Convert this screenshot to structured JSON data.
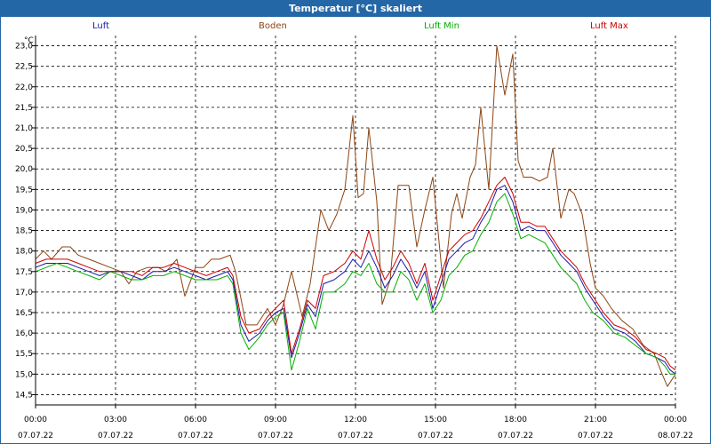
{
  "title": "Temperatur [°C] skaliert",
  "chart_data": {
    "type": "line",
    "title": "Temperatur [°C] skaliert",
    "ylabel": "°C",
    "xlabel": "",
    "ylim": [
      14.25,
      23.25
    ],
    "xlim": [
      0,
      24
    ],
    "grid": true,
    "legend": "top",
    "y_ticks": [
      "14,5",
      "15,0",
      "15,5",
      "16,0",
      "16,5",
      "17,0",
      "17,5",
      "18,0",
      "18,5",
      "19,0",
      "19,5",
      "20,0",
      "20,5",
      "21,0",
      "21,5",
      "22,0",
      "22,5",
      "23,0"
    ],
    "x_ticks": [
      {
        "time": "00:00",
        "date": "07.07.22"
      },
      {
        "time": "03:00",
        "date": "07.07.22"
      },
      {
        "time": "06:00",
        "date": "07.07.22"
      },
      {
        "time": "09:00",
        "date": "07.07.22"
      },
      {
        "time": "12:00",
        "date": "07.07.22"
      },
      {
        "time": "15:00",
        "date": "07.07.22"
      },
      {
        "time": "18:00",
        "date": "07.07.22"
      },
      {
        "time": "21:00",
        "date": "07.07.22"
      },
      {
        "time": "00:00",
        "date": "08.07.22"
      }
    ],
    "series": [
      {
        "name": "Boden",
        "color": "#8b4513",
        "points": [
          [
            0,
            17.8
          ],
          [
            0.3,
            18
          ],
          [
            0.6,
            17.8
          ],
          [
            1,
            18.1
          ],
          [
            1.3,
            18.1
          ],
          [
            1.6,
            17.9
          ],
          [
            2,
            17.8
          ],
          [
            2.4,
            17.7
          ],
          [
            2.8,
            17.6
          ],
          [
            3.2,
            17.5
          ],
          [
            3.5,
            17.2
          ],
          [
            3.8,
            17.5
          ],
          [
            4.2,
            17.6
          ],
          [
            4.6,
            17.6
          ],
          [
            4.9,
            17.5
          ],
          [
            5.3,
            17.8
          ],
          [
            5.6,
            16.9
          ],
          [
            6,
            17.6
          ],
          [
            6.3,
            17.6
          ],
          [
            6.6,
            17.8
          ],
          [
            6.9,
            17.8
          ],
          [
            7.3,
            17.9
          ],
          [
            7.5,
            17.5
          ],
          [
            7.9,
            16.2
          ],
          [
            8.3,
            16.2
          ],
          [
            8.7,
            16.6
          ],
          [
            9,
            16.2
          ],
          [
            9.3,
            16.7
          ],
          [
            9.6,
            17.5
          ],
          [
            10,
            16.4
          ],
          [
            10.3,
            17.2
          ],
          [
            10.7,
            19
          ],
          [
            11,
            18.5
          ],
          [
            11.3,
            18.9
          ],
          [
            11.6,
            19.5
          ],
          [
            11.9,
            21.3
          ],
          [
            12.1,
            19.3
          ],
          [
            12.3,
            19.4
          ],
          [
            12.5,
            21
          ],
          [
            12.8,
            19.2
          ],
          [
            13,
            16.7
          ],
          [
            13.3,
            17.3
          ],
          [
            13.6,
            19.6
          ],
          [
            14,
            19.6
          ],
          [
            14.3,
            18.1
          ],
          [
            14.6,
            19
          ],
          [
            14.9,
            19.8
          ],
          [
            15.3,
            17.1
          ],
          [
            15.6,
            18.9
          ],
          [
            15.8,
            19.4
          ],
          [
            16,
            18.8
          ],
          [
            16.3,
            19.8
          ],
          [
            16.5,
            20.1
          ],
          [
            16.7,
            21.5
          ],
          [
            17,
            19.5
          ],
          [
            17.3,
            23
          ],
          [
            17.6,
            21.8
          ],
          [
            17.9,
            22.8
          ],
          [
            18.1,
            20.2
          ],
          [
            18.3,
            19.8
          ],
          [
            18.6,
            19.8
          ],
          [
            18.9,
            19.7
          ],
          [
            19.2,
            19.8
          ],
          [
            19.4,
            20.5
          ],
          [
            19.7,
            18.8
          ],
          [
            20,
            19.5
          ],
          [
            20.2,
            19.4
          ],
          [
            20.5,
            18.9
          ],
          [
            20.8,
            17.7
          ],
          [
            21,
            17.1
          ],
          [
            21.3,
            16.9
          ],
          [
            21.6,
            16.6
          ],
          [
            22,
            16.3
          ],
          [
            22.4,
            16.1
          ],
          [
            22.8,
            15.7
          ],
          [
            23.2,
            15.5
          ],
          [
            23.5,
            15
          ],
          [
            23.7,
            14.7
          ],
          [
            24,
            15
          ]
        ]
      },
      {
        "name": "Luft",
        "color": "#1a1aa6",
        "points": [
          [
            0,
            17.6
          ],
          [
            0.4,
            17.7
          ],
          [
            0.8,
            17.7
          ],
          [
            1.2,
            17.7
          ],
          [
            1.6,
            17.6
          ],
          [
            2,
            17.5
          ],
          [
            2.4,
            17.4
          ],
          [
            2.8,
            17.5
          ],
          [
            3.2,
            17.5
          ],
          [
            3.6,
            17.4
          ],
          [
            4,
            17.3
          ],
          [
            4.4,
            17.5
          ],
          [
            4.8,
            17.5
          ],
          [
            5.2,
            17.6
          ],
          [
            5.6,
            17.5
          ],
          [
            6,
            17.4
          ],
          [
            6.4,
            17.3
          ],
          [
            6.8,
            17.4
          ],
          [
            7.2,
            17.5
          ],
          [
            7.4,
            17.3
          ],
          [
            7.7,
            16.2
          ],
          [
            8,
            15.8
          ],
          [
            8.4,
            16
          ],
          [
            8.7,
            16.3
          ],
          [
            9,
            16.5
          ],
          [
            9.3,
            16.6
          ],
          [
            9.6,
            15.4
          ],
          [
            9.9,
            16
          ],
          [
            10.2,
            16.7
          ],
          [
            10.5,
            16.4
          ],
          [
            10.8,
            17.2
          ],
          [
            11.2,
            17.3
          ],
          [
            11.6,
            17.5
          ],
          [
            11.9,
            17.8
          ],
          [
            12.2,
            17.6
          ],
          [
            12.5,
            18
          ],
          [
            12.8,
            17.6
          ],
          [
            13.1,
            17.1
          ],
          [
            13.4,
            17.4
          ],
          [
            13.7,
            17.8
          ],
          [
            14,
            17.5
          ],
          [
            14.3,
            17.1
          ],
          [
            14.6,
            17.5
          ],
          [
            14.9,
            16.6
          ],
          [
            15.2,
            17.2
          ],
          [
            15.5,
            17.8
          ],
          [
            15.8,
            18
          ],
          [
            16.1,
            18.2
          ],
          [
            16.4,
            18.3
          ],
          [
            16.7,
            18.7
          ],
          [
            17,
            19
          ],
          [
            17.3,
            19.5
          ],
          [
            17.6,
            19.6
          ],
          [
            17.9,
            19.2
          ],
          [
            18.2,
            18.5
          ],
          [
            18.5,
            18.6
          ],
          [
            18.8,
            18.5
          ],
          [
            19.1,
            18.5
          ],
          [
            19.4,
            18.2
          ],
          [
            19.7,
            17.9
          ],
          [
            20,
            17.7
          ],
          [
            20.3,
            17.5
          ],
          [
            20.6,
            17.1
          ],
          [
            20.9,
            16.8
          ],
          [
            21.3,
            16.4
          ],
          [
            21.7,
            16.1
          ],
          [
            22.1,
            16
          ],
          [
            22.5,
            15.8
          ],
          [
            22.9,
            15.5
          ],
          [
            23.3,
            15.4
          ],
          [
            23.6,
            15.3
          ],
          [
            23.8,
            15.1
          ],
          [
            24,
            15
          ]
        ]
      },
      {
        "name": "Luft Min",
        "color": "#00b000",
        "points": [
          [
            0,
            17.5
          ],
          [
            0.4,
            17.6
          ],
          [
            0.8,
            17.7
          ],
          [
            1.2,
            17.6
          ],
          [
            1.6,
            17.5
          ],
          [
            2,
            17.4
          ],
          [
            2.4,
            17.3
          ],
          [
            2.8,
            17.5
          ],
          [
            3.2,
            17.4
          ],
          [
            3.6,
            17.3
          ],
          [
            4,
            17.3
          ],
          [
            4.4,
            17.4
          ],
          [
            4.8,
            17.4
          ],
          [
            5.2,
            17.5
          ],
          [
            5.6,
            17.4
          ],
          [
            6,
            17.3
          ],
          [
            6.4,
            17.3
          ],
          [
            6.8,
            17.3
          ],
          [
            7.2,
            17.4
          ],
          [
            7.4,
            17.2
          ],
          [
            7.7,
            16
          ],
          [
            8,
            15.6
          ],
          [
            8.4,
            15.9
          ],
          [
            8.7,
            16.2
          ],
          [
            9,
            16.4
          ],
          [
            9.3,
            16.5
          ],
          [
            9.6,
            15.1
          ],
          [
            9.9,
            15.8
          ],
          [
            10.2,
            16.6
          ],
          [
            10.5,
            16.1
          ],
          [
            10.8,
            17
          ],
          [
            11.2,
            17
          ],
          [
            11.6,
            17.2
          ],
          [
            11.9,
            17.5
          ],
          [
            12.2,
            17.4
          ],
          [
            12.5,
            17.7
          ],
          [
            12.8,
            17.2
          ],
          [
            13.1,
            17
          ],
          [
            13.4,
            17
          ],
          [
            13.7,
            17.5
          ],
          [
            14,
            17.3
          ],
          [
            14.3,
            16.8
          ],
          [
            14.6,
            17.2
          ],
          [
            14.9,
            16.5
          ],
          [
            15.2,
            16.8
          ],
          [
            15.5,
            17.4
          ],
          [
            15.8,
            17.6
          ],
          [
            16.1,
            17.9
          ],
          [
            16.4,
            18
          ],
          [
            16.7,
            18.4
          ],
          [
            17,
            18.7
          ],
          [
            17.3,
            19.2
          ],
          [
            17.6,
            19.4
          ],
          [
            17.9,
            18.9
          ],
          [
            18.2,
            18.3
          ],
          [
            18.5,
            18.4
          ],
          [
            18.8,
            18.3
          ],
          [
            19.1,
            18.2
          ],
          [
            19.4,
            17.9
          ],
          [
            19.7,
            17.6
          ],
          [
            20,
            17.4
          ],
          [
            20.3,
            17.2
          ],
          [
            20.6,
            16.8
          ],
          [
            20.9,
            16.5
          ],
          [
            21.3,
            16.3
          ],
          [
            21.7,
            16
          ],
          [
            22.1,
            15.9
          ],
          [
            22.5,
            15.7
          ],
          [
            22.9,
            15.5
          ],
          [
            23.3,
            15.4
          ],
          [
            23.6,
            15.2
          ],
          [
            23.8,
            15
          ],
          [
            24,
            15
          ]
        ]
      },
      {
        "name": "Luft Max",
        "color": "#cc0000",
        "points": [
          [
            0,
            17.7
          ],
          [
            0.4,
            17.8
          ],
          [
            0.8,
            17.8
          ],
          [
            1.2,
            17.8
          ],
          [
            1.6,
            17.7
          ],
          [
            2,
            17.6
          ],
          [
            2.4,
            17.5
          ],
          [
            2.8,
            17.5
          ],
          [
            3.2,
            17.5
          ],
          [
            3.6,
            17.5
          ],
          [
            4,
            17.4
          ],
          [
            4.4,
            17.6
          ],
          [
            4.8,
            17.6
          ],
          [
            5.2,
            17.7
          ],
          [
            5.6,
            17.6
          ],
          [
            6,
            17.5
          ],
          [
            6.4,
            17.4
          ],
          [
            6.8,
            17.5
          ],
          [
            7.2,
            17.6
          ],
          [
            7.4,
            17.4
          ],
          [
            7.7,
            16.4
          ],
          [
            8,
            16
          ],
          [
            8.4,
            16.1
          ],
          [
            8.7,
            16.4
          ],
          [
            9,
            16.6
          ],
          [
            9.3,
            16.8
          ],
          [
            9.6,
            15.5
          ],
          [
            9.9,
            16.1
          ],
          [
            10.2,
            16.8
          ],
          [
            10.5,
            16.6
          ],
          [
            10.8,
            17.4
          ],
          [
            11.2,
            17.5
          ],
          [
            11.6,
            17.7
          ],
          [
            11.9,
            18
          ],
          [
            12.2,
            17.8
          ],
          [
            12.5,
            18.5
          ],
          [
            12.8,
            17.8
          ],
          [
            13.1,
            17.3
          ],
          [
            13.4,
            17.6
          ],
          [
            13.7,
            18
          ],
          [
            14,
            17.7
          ],
          [
            14.3,
            17.2
          ],
          [
            14.6,
            17.7
          ],
          [
            14.9,
            16.8
          ],
          [
            15.2,
            17.4
          ],
          [
            15.5,
            18
          ],
          [
            15.8,
            18.2
          ],
          [
            16.1,
            18.4
          ],
          [
            16.4,
            18.5
          ],
          [
            16.7,
            18.8
          ],
          [
            17,
            19.2
          ],
          [
            17.3,
            19.6
          ],
          [
            17.6,
            19.8
          ],
          [
            17.9,
            19.4
          ],
          [
            18.2,
            18.7
          ],
          [
            18.5,
            18.7
          ],
          [
            18.8,
            18.6
          ],
          [
            19.1,
            18.6
          ],
          [
            19.4,
            18.3
          ],
          [
            19.7,
            18
          ],
          [
            20,
            17.8
          ],
          [
            20.3,
            17.6
          ],
          [
            20.6,
            17.2
          ],
          [
            20.9,
            16.9
          ],
          [
            21.3,
            16.5
          ],
          [
            21.7,
            16.2
          ],
          [
            22.1,
            16.1
          ],
          [
            22.5,
            15.9
          ],
          [
            22.9,
            15.6
          ],
          [
            23.3,
            15.5
          ],
          [
            23.6,
            15.4
          ],
          [
            23.8,
            15.2
          ],
          [
            24,
            15.1
          ]
        ]
      }
    ]
  }
}
